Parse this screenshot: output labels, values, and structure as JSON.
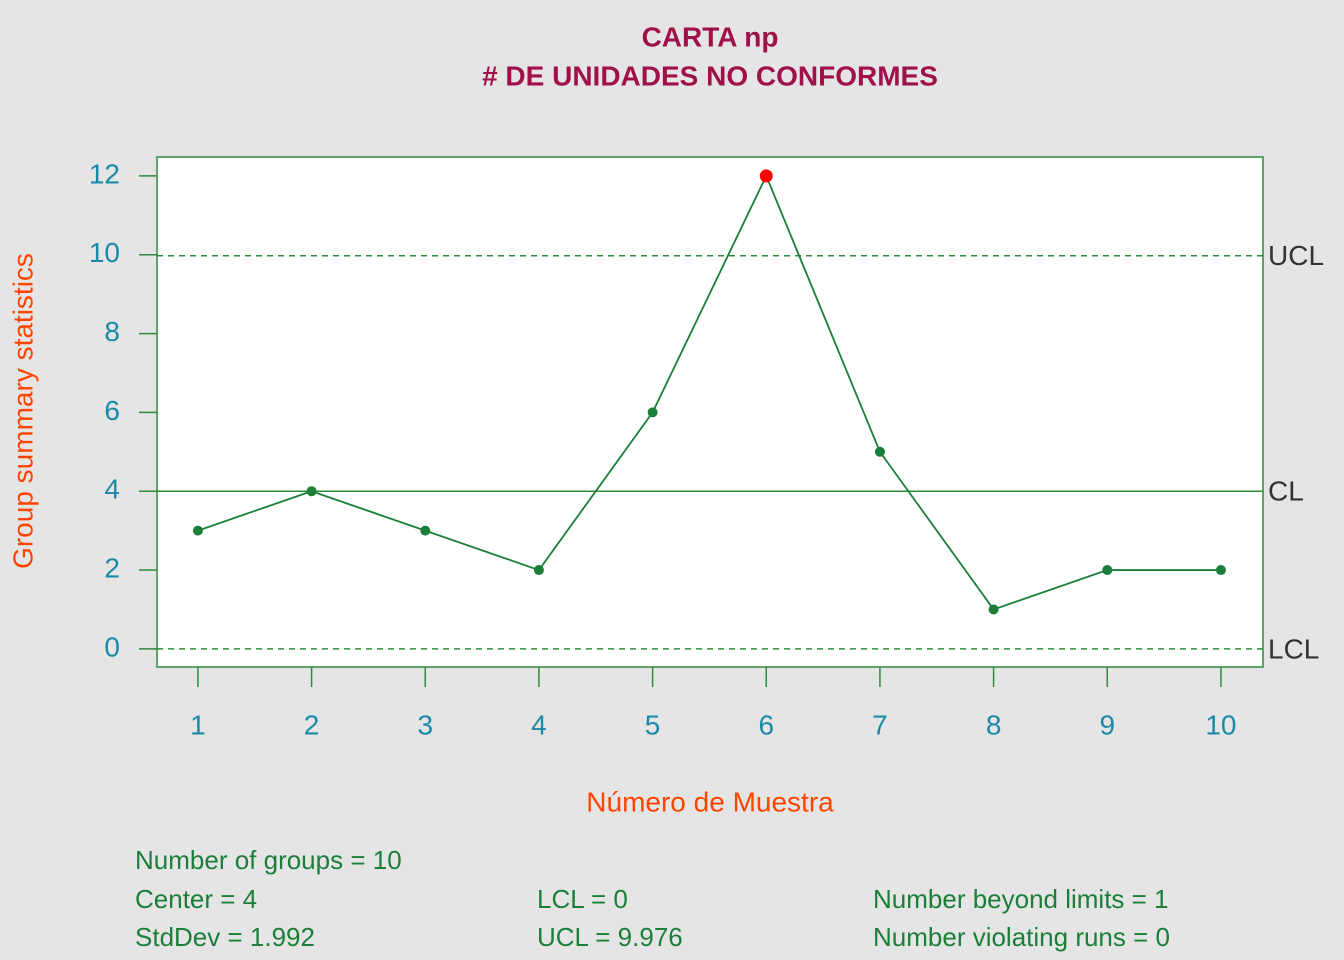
{
  "chart_data": {
    "type": "line",
    "title": "CARTA np",
    "subtitle": "# DE UNIDADES NO CONFORMES",
    "x_label": "Número de Muestra",
    "y_label": "Group summary statistics",
    "x": [
      1,
      2,
      3,
      4,
      5,
      6,
      7,
      8,
      9,
      10
    ],
    "values": [
      3,
      4,
      3,
      2,
      6,
      12,
      5,
      1,
      2,
      2
    ],
    "color": "#1b7f3a",
    "violation_color": "#ff0000",
    "xlim": [
      0.64,
      10.37
    ],
    "xticks": [
      1,
      2,
      3,
      4,
      5,
      6,
      7,
      8,
      9,
      10
    ],
    "ylim": [
      -0.46,
      12.48
    ],
    "yticks": [
      0,
      2,
      4,
      6,
      8,
      10,
      12
    ],
    "limits": [
      {
        "name": "UCL",
        "value": 9.976,
        "style": "dashed"
      },
      {
        "name": "CL",
        "value": 4,
        "style": "solid"
      },
      {
        "name": "LCL",
        "value": 0,
        "style": "dashed"
      }
    ],
    "stats": [
      "Number of groups = 10",
      "Center = 4",
      "StdDev = 1.992",
      "LCL = 0",
      "UCL = 9.976",
      "Number beyond limits = 1",
      "Number violating runs = 0"
    ]
  }
}
